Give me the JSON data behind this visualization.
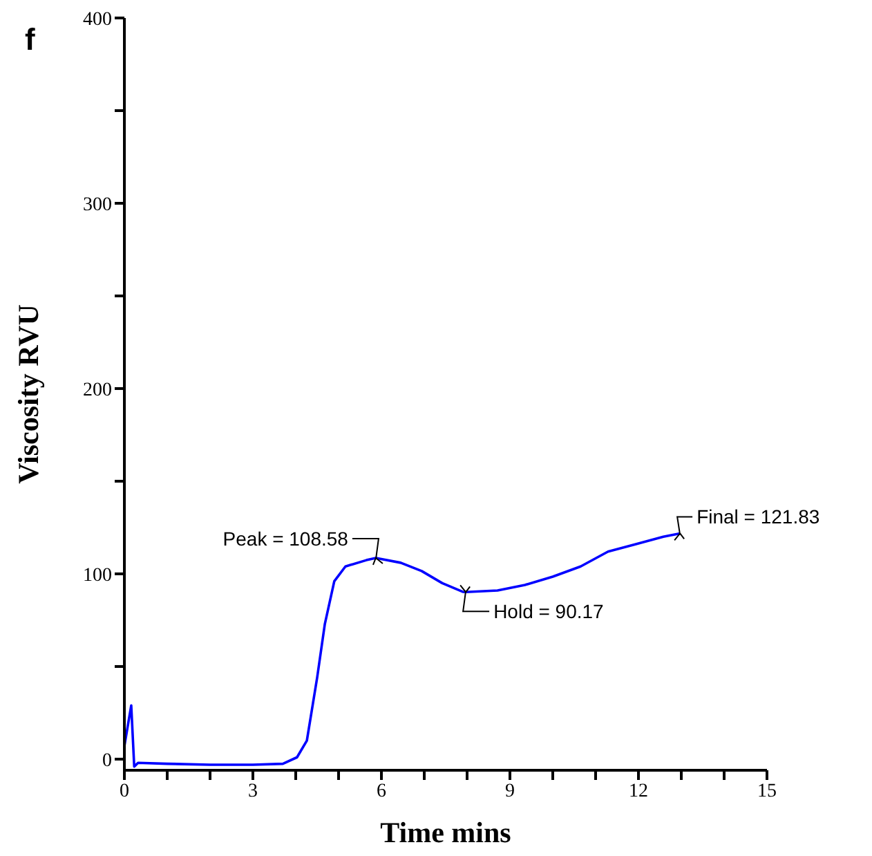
{
  "chart_data": {
    "type": "line",
    "xlabel": "Time mins",
    "ylabel": "Viscosity RVU",
    "x": [
      0,
      0.16,
      0.23,
      0.32,
      1,
      2,
      3,
      3.7,
      4.03,
      4.26,
      4.5,
      4.68,
      4.9,
      5.16,
      5.65,
      5.87,
      6.45,
      6.94,
      7.42,
      7.9,
      7.97,
      8.71,
      9.35,
      10,
      10.65,
      11.29,
      11.94,
      12.58,
      12.97
    ],
    "series": [
      {
        "color": "#0000ff",
        "values": [
          7,
          29,
          -4,
          -2,
          -2.5,
          -3,
          -3,
          -2.5,
          1,
          10,
          44,
          73,
          96,
          104,
          107.4,
          108.58,
          106,
          101.5,
          95,
          90.3,
          90.17,
          91,
          94,
          98.5,
          104,
          112,
          116,
          120,
          121.83
        ]
      }
    ],
    "xlim": [
      0,
      15
    ],
    "ylim": [
      -6,
      400
    ],
    "xticks": [
      0,
      {
        "value": 1,
        "label": null
      },
      {
        "value": 2,
        "label": null
      },
      3,
      {
        "value": 4,
        "label": null
      },
      {
        "value": 5,
        "label": null
      },
      6,
      {
        "value": 7,
        "label": null
      },
      {
        "value": 8,
        "label": null
      },
      9,
      {
        "value": 10,
        "label": null
      },
      {
        "value": 11,
        "label": null
      },
      12,
      {
        "value": 13,
        "label": null
      },
      {
        "value": 14,
        "label": null
      },
      15
    ],
    "yticks": [
      0,
      {
        "value": 50,
        "label": null
      },
      100,
      {
        "value": 150,
        "label": null
      },
      200,
      {
        "value": 250,
        "label": null
      },
      300,
      {
        "value": 350,
        "label": null
      },
      400
    ],
    "marker": "none",
    "line_style": "solid",
    "annotations": [
      "f",
      {
        "text": "Peak = 108.58",
        "x": 5.87,
        "y": 108.58
      },
      {
        "text": "Hold = 90.17",
        "x": 7.97,
        "y": 90.17
      },
      {
        "text": "Final = 121.83",
        "x": 12.97,
        "y": 121.83
      }
    ]
  }
}
